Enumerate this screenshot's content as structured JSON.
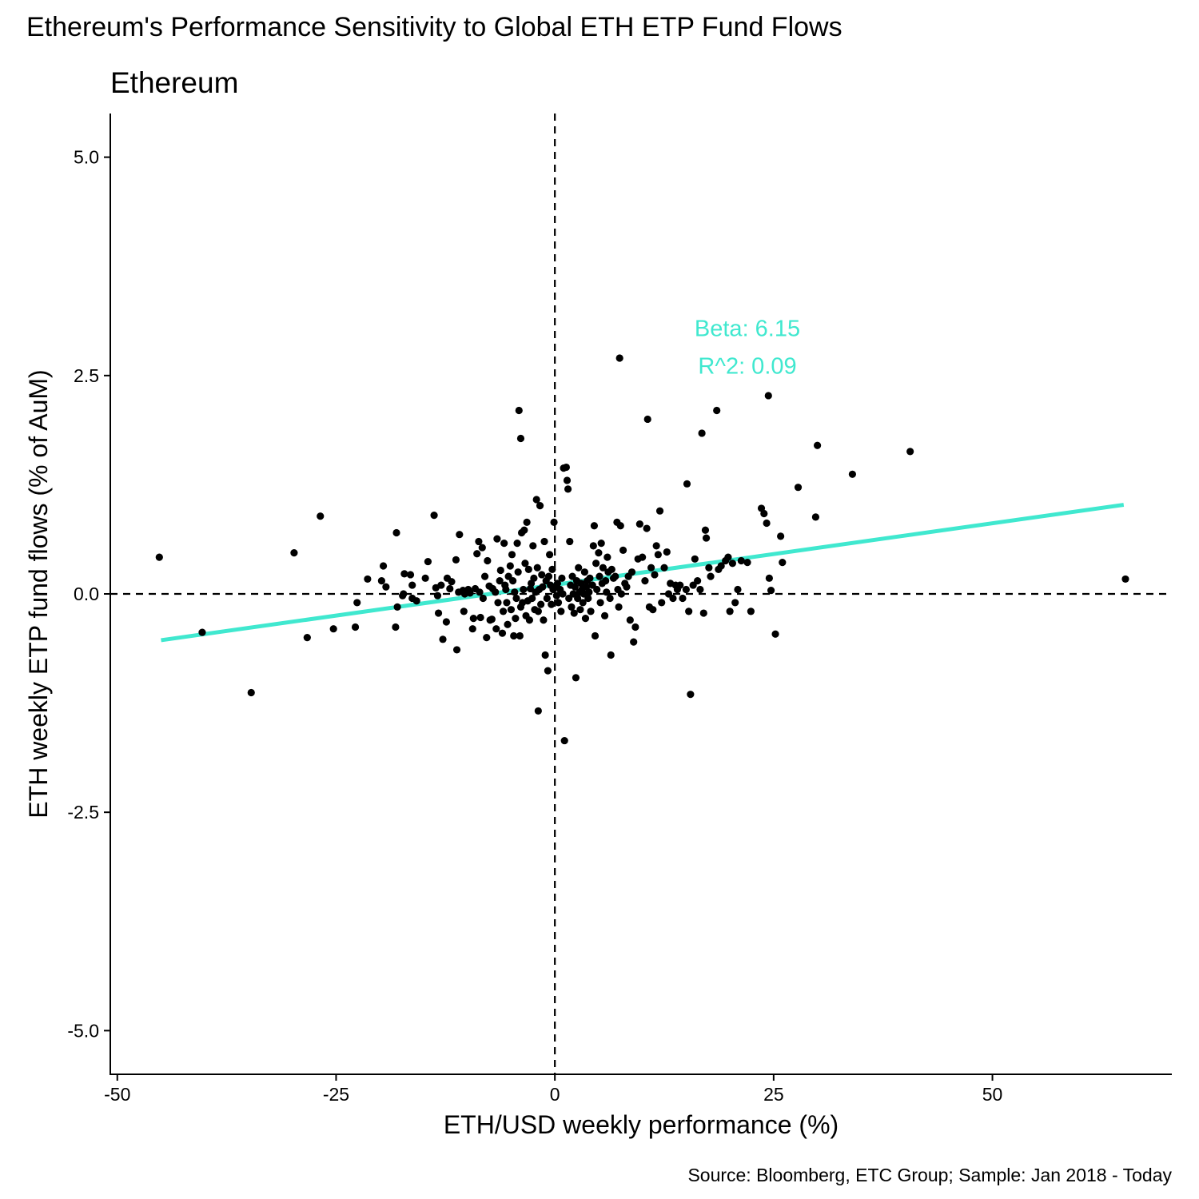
{
  "chart_data": {
    "type": "scatter",
    "title": "Ethereum's Performance Sensitivity to Global ETH ETP Fund Flows",
    "subtitle": "Ethereum",
    "xlabel": "ETH/USD weekly performance (%)",
    "ylabel": "ETH weekly ETP fund flows (% of AuM)",
    "caption": "Source: Bloomberg, ETC Group; Sample: Jan 2018 - Today",
    "xlim": [
      -50.8,
      70.5
    ],
    "ylim": [
      -5.5,
      5.5
    ],
    "x_ticks": [
      -50,
      -25,
      0,
      25,
      50
    ],
    "x_tick_labels": [
      "-50",
      "-25",
      "0",
      "25",
      "50"
    ],
    "y_ticks": [
      5.0,
      2.5,
      0.0,
      -2.5,
      -5.0
    ],
    "y_tick_labels": [
      "5.0",
      "2.5",
      "0.0",
      "-2.5",
      "-5.0"
    ],
    "reference_lines": {
      "x": 0,
      "y": 0
    },
    "fit_line": {
      "x": [
        -45.0,
        65.0
      ],
      "y": [
        -0.53,
        1.02
      ],
      "color": "#40E8CF"
    },
    "annotations": [
      "Beta: 6.15",
      "R^2: 0.09"
    ],
    "annotation_anchor": {
      "x": 22,
      "y": 2.95
    },
    "annotation_color": "#40E8CF",
    "point_color": "#000000",
    "points": [
      [
        -45.2,
        0.42
      ],
      [
        -40.3,
        -0.44
      ],
      [
        -34.7,
        -1.13
      ],
      [
        -29.8,
        0.47
      ],
      [
        -28.3,
        -0.5
      ],
      [
        -26.8,
        0.89
      ],
      [
        -25.3,
        -0.4
      ],
      [
        -22.8,
        -0.38
      ],
      [
        -22.6,
        -0.1
      ],
      [
        -21.4,
        0.17
      ],
      [
        -19.8,
        0.15
      ],
      [
        -19.6,
        0.32
      ],
      [
        -19.3,
        0.08
      ],
      [
        -18.2,
        -0.38
      ],
      [
        -18.1,
        0.7
      ],
      [
        -18.0,
        -0.15
      ],
      [
        -17.4,
        -0.02
      ],
      [
        -17.3,
        0.0
      ],
      [
        -17.2,
        0.23
      ],
      [
        -16.5,
        0.22
      ],
      [
        -16.3,
        0.1
      ],
      [
        -16.3,
        -0.05
      ],
      [
        -15.8,
        -0.08
      ],
      [
        -14.8,
        0.18
      ],
      [
        -14.5,
        0.37
      ],
      [
        -13.8,
        0.9
      ],
      [
        -13.6,
        0.07
      ],
      [
        -13.4,
        -0.02
      ],
      [
        -13.3,
        -0.22
      ],
      [
        -13.0,
        0.1
      ],
      [
        -12.8,
        -0.52
      ],
      [
        -12.4,
        -0.32
      ],
      [
        -12.3,
        0.18
      ],
      [
        -12.0,
        0.06
      ],
      [
        -11.8,
        0.14
      ],
      [
        -11.3,
        0.39
      ],
      [
        -11.2,
        -0.64
      ],
      [
        -11.0,
        0.02
      ],
      [
        -10.9,
        0.68
      ],
      [
        -10.5,
        0.04
      ],
      [
        -10.4,
        -0.2
      ],
      [
        -10.3,
        0.0
      ],
      [
        -9.9,
        0.05
      ],
      [
        -9.7,
        0.01
      ],
      [
        -9.4,
        -0.4
      ],
      [
        -9.3,
        -0.28
      ],
      [
        -9.1,
        0.06
      ],
      [
        -8.9,
        0.46
      ],
      [
        -8.7,
        0.6
      ],
      [
        -8.6,
        0.02
      ],
      [
        -8.5,
        -0.27
      ],
      [
        -8.3,
        0.53
      ],
      [
        -8.2,
        -0.05
      ],
      [
        -8.0,
        0.2
      ],
      [
        -7.8,
        -0.5
      ],
      [
        -7.7,
        0.38
      ],
      [
        -7.5,
        0.09
      ],
      [
        -7.4,
        -0.3
      ],
      [
        -7.2,
        -0.29
      ],
      [
        -7.1,
        0.06
      ],
      [
        -6.8,
        0.02
      ],
      [
        -6.7,
        -0.4
      ],
      [
        -6.6,
        0.63
      ],
      [
        -6.5,
        -0.1
      ],
      [
        -6.3,
        0.15
      ],
      [
        -6.2,
        0.27
      ],
      [
        -6.0,
        -0.45
      ],
      [
        -5.9,
        -0.2
      ],
      [
        -5.8,
        0.58
      ],
      [
        -5.7,
        0.1
      ],
      [
        -5.6,
        0.05
      ],
      [
        -5.5,
        -0.1
      ],
      [
        -5.4,
        -0.35
      ],
      [
        -5.3,
        0.2
      ],
      [
        -5.1,
        0.32
      ],
      [
        -5.0,
        -0.18
      ],
      [
        -4.9,
        0.45
      ],
      [
        -4.8,
        0.15
      ],
      [
        -4.7,
        -0.48
      ],
      [
        -4.6,
        0.02
      ],
      [
        -4.5,
        -0.28
      ],
      [
        -4.4,
        -0.05
      ],
      [
        -4.3,
        0.58
      ],
      [
        -4.2,
        0.25
      ],
      [
        -4.0,
        -0.48
      ],
      [
        -3.9,
        -0.15
      ],
      [
        -3.8,
        0.7
      ],
      [
        -3.7,
        -0.1
      ],
      [
        -3.6,
        0.05
      ],
      [
        -3.5,
        0.73
      ],
      [
        -3.4,
        0.35
      ],
      [
        -3.3,
        -0.25
      ],
      [
        -3.2,
        0.82
      ],
      [
        -3.1,
        -0.08
      ],
      [
        -3.0,
        0.28
      ],
      [
        -2.9,
        -0.3
      ],
      [
        -2.8,
        0.06
      ],
      [
        -2.7,
        0.12
      ],
      [
        -2.6,
        -0.05
      ],
      [
        -2.5,
        0.55
      ],
      [
        -2.4,
        0.18
      ],
      [
        -2.3,
        -0.18
      ],
      [
        -2.2,
        0.02
      ],
      [
        -2.1,
        1.08
      ],
      [
        -2.0,
        0.3
      ],
      [
        -1.9,
        -0.2
      ],
      [
        -1.8,
        0.05
      ],
      [
        -1.7,
        1.01
      ],
      [
        -1.6,
        -0.12
      ],
      [
        -1.5,
        0.22
      ],
      [
        -1.4,
        0.08
      ],
      [
        -1.3,
        -0.3
      ],
      [
        -1.2,
        0.6
      ],
      [
        -1.1,
        -0.7
      ],
      [
        -1.0,
        0.15
      ],
      [
        -0.9,
        -0.05
      ],
      [
        -0.8,
        -0.88
      ],
      [
        -0.7,
        0.2
      ],
      [
        -0.6,
        0.45
      ],
      [
        -0.5,
        0.1
      ],
      [
        -0.4,
        -0.12
      ],
      [
        -0.3,
        0.28
      ],
      [
        -0.2,
        0.05
      ],
      [
        -0.1,
        0.82
      ],
      [
        0.0,
        0.08
      ],
      [
        -4.1,
        2.1
      ],
      [
        -3.9,
        1.78
      ],
      [
        -1.9,
        -1.34
      ],
      [
        0.2,
        -0.02
      ],
      [
        0.3,
        0.12
      ],
      [
        0.4,
        -0.1
      ],
      [
        0.6,
        0.05
      ],
      [
        0.7,
        -0.2
      ],
      [
        0.8,
        0.18
      ],
      [
        0.9,
        0.0
      ],
      [
        1.0,
        1.44
      ],
      [
        1.1,
        -1.68
      ],
      [
        1.3,
        1.45
      ],
      [
        1.4,
        1.3
      ],
      [
        1.5,
        1.2
      ],
      [
        1.6,
        -0.05
      ],
      [
        1.7,
        0.6
      ],
      [
        1.8,
        0.1
      ],
      [
        1.9,
        -0.15
      ],
      [
        2.0,
        0.2
      ],
      [
        2.1,
        0.0
      ],
      [
        2.2,
        -0.22
      ],
      [
        2.3,
        0.08
      ],
      [
        2.4,
        -0.96
      ],
      [
        2.5,
        0.15
      ],
      [
        2.6,
        -0.05
      ],
      [
        2.7,
        0.3
      ],
      [
        2.8,
        0.02
      ],
      [
        2.9,
        -0.18
      ],
      [
        3.0,
        0.12
      ],
      [
        3.1,
        0.05
      ],
      [
        3.2,
        -0.1
      ],
      [
        3.3,
        0.0
      ],
      [
        3.4,
        0.25
      ],
      [
        3.5,
        -0.28
      ],
      [
        3.6,
        0.08
      ],
      [
        3.7,
        0.15
      ],
      [
        3.8,
        -0.05
      ],
      [
        3.9,
        0.02
      ],
      [
        4.0,
        0.18
      ],
      [
        4.1,
        -0.2
      ],
      [
        4.3,
        0.1
      ],
      [
        4.4,
        0.55
      ],
      [
        4.5,
        0.78
      ],
      [
        4.6,
        -0.48
      ],
      [
        4.7,
        0.35
      ],
      [
        4.8,
        0.05
      ],
      [
        5.0,
        0.47
      ],
      [
        5.1,
        0.2
      ],
      [
        5.2,
        -0.1
      ],
      [
        5.3,
        0.58
      ],
      [
        5.4,
        0.12
      ],
      [
        5.5,
        0.3
      ],
      [
        5.7,
        -0.25
      ],
      [
        5.8,
        0.15
      ],
      [
        5.9,
        0.02
      ],
      [
        6.0,
        0.42
      ],
      [
        6.1,
        0.25
      ],
      [
        6.3,
        -0.05
      ],
      [
        6.4,
        -0.7
      ],
      [
        6.5,
        0.28
      ],
      [
        6.7,
        0.18
      ],
      [
        6.9,
        0.2
      ],
      [
        7.1,
        0.82
      ],
      [
        7.2,
        0.05
      ],
      [
        7.3,
        -0.15
      ],
      [
        7.4,
        2.7
      ],
      [
        7.5,
        0.78
      ],
      [
        7.6,
        0.0
      ],
      [
        7.8,
        0.5
      ],
      [
        8.0,
        0.12
      ],
      [
        8.2,
        0.08
      ],
      [
        8.4,
        0.2
      ],
      [
        8.6,
        -0.3
      ],
      [
        8.8,
        0.25
      ],
      [
        9.0,
        -0.55
      ],
      [
        9.2,
        -0.38
      ],
      [
        9.5,
        0.4
      ],
      [
        9.7,
        0.8
      ],
      [
        10.0,
        0.42
      ],
      [
        10.3,
        0.15
      ],
      [
        10.5,
        0.75
      ],
      [
        10.6,
        2.0
      ],
      [
        10.8,
        -0.15
      ],
      [
        11.0,
        0.3
      ],
      [
        11.2,
        -0.18
      ],
      [
        11.4,
        0.22
      ],
      [
        11.6,
        0.55
      ],
      [
        11.8,
        0.45
      ],
      [
        12.0,
        0.95
      ],
      [
        12.2,
        -0.1
      ],
      [
        12.5,
        0.3
      ],
      [
        12.8,
        0.48
      ],
      [
        13.0,
        0.0
      ],
      [
        13.2,
        0.12
      ],
      [
        13.5,
        -0.05
      ],
      [
        13.8,
        0.1
      ],
      [
        14.0,
        0.05
      ],
      [
        14.3,
        0.1
      ],
      [
        14.6,
        -0.05
      ],
      [
        15.0,
        0.05
      ],
      [
        15.1,
        1.26
      ],
      [
        15.3,
        -0.2
      ],
      [
        15.5,
        -1.15
      ],
      [
        15.8,
        0.1
      ],
      [
        16.0,
        0.4
      ],
      [
        16.3,
        0.15
      ],
      [
        16.6,
        0.05
      ],
      [
        16.8,
        1.84
      ],
      [
        17.0,
        -0.22
      ],
      [
        17.2,
        0.73
      ],
      [
        17.3,
        0.64
      ],
      [
        17.6,
        0.3
      ],
      [
        17.8,
        0.2
      ],
      [
        18.5,
        2.1
      ],
      [
        18.7,
        0.28
      ],
      [
        19.0,
        0.32
      ],
      [
        19.5,
        0.38
      ],
      [
        19.8,
        0.42
      ],
      [
        20.0,
        -0.2
      ],
      [
        20.3,
        0.35
      ],
      [
        20.6,
        -0.1
      ],
      [
        20.9,
        0.05
      ],
      [
        21.3,
        0.38
      ],
      [
        22.0,
        0.36
      ],
      [
        22.4,
        -0.2
      ],
      [
        23.6,
        0.98
      ],
      [
        23.9,
        0.92
      ],
      [
        24.2,
        0.81
      ],
      [
        24.4,
        2.27
      ],
      [
        24.5,
        0.18
      ],
      [
        24.7,
        0.04
      ],
      [
        25.2,
        -0.46
      ],
      [
        25.8,
        0.66
      ],
      [
        26.0,
        0.36
      ],
      [
        27.8,
        1.22
      ],
      [
        29.8,
        0.88
      ],
      [
        30.0,
        1.7
      ],
      [
        34.0,
        1.37
      ],
      [
        40.6,
        1.63
      ],
      [
        65.2,
        0.17
      ]
    ]
  }
}
